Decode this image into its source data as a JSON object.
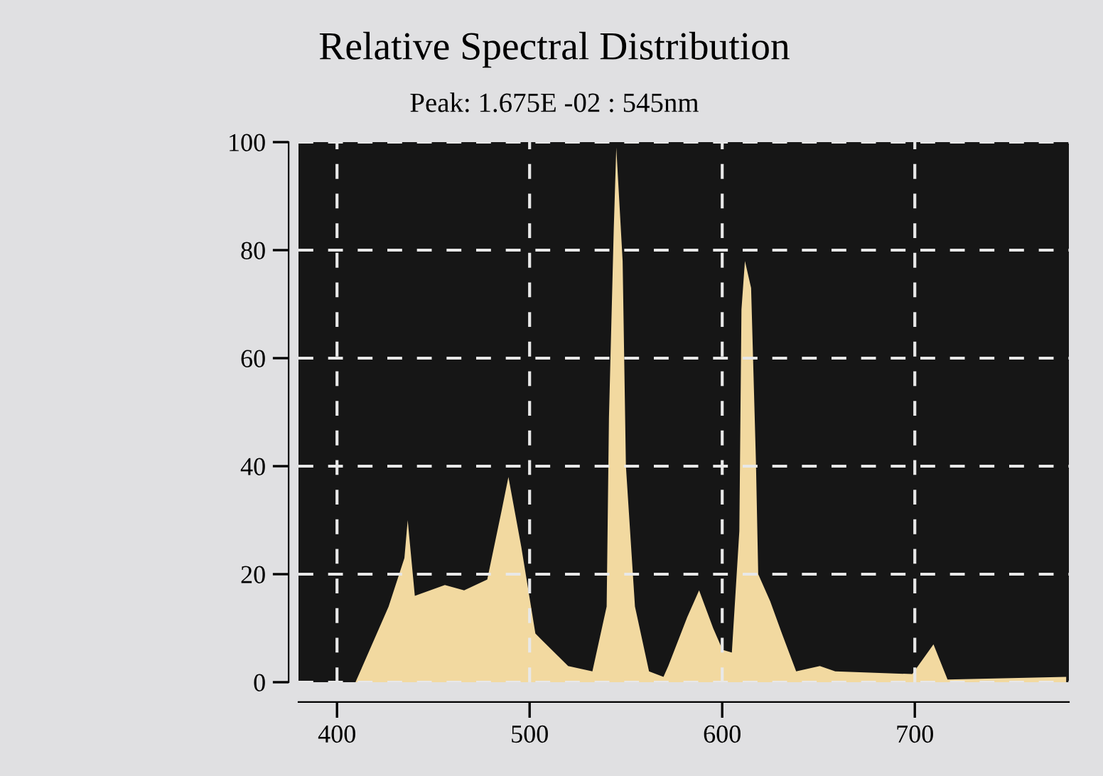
{
  "chart_data": {
    "type": "area",
    "title": "Relative Spectral Distribution",
    "subtitle": "Peak: 1.675E -02 : 545nm",
    "x": [
      380,
      409.6,
      426.8,
      435,
      436.7,
      440.4,
      456,
      466,
      478,
      485.6,
      489,
      495.7,
      503,
      520,
      532.6,
      540,
      541.2,
      543.7,
      545,
      548.3,
      550,
      554.7,
      562,
      569.5,
      572,
      581.8,
      588,
      595.3,
      600.2,
      605,
      608.9,
      610,
      611.8,
      615,
      617.5,
      618.7,
      624.9,
      631,
      638.4,
      650.7,
      658.7,
      698.7,
      709.7,
      717,
      778.6
    ],
    "values": [
      0,
      0,
      14,
      23,
      30,
      16,
      18,
      17,
      19,
      32,
      38,
      25,
      9,
      3,
      2,
      14,
      49,
      84,
      99,
      78,
      40,
      14,
      2,
      1,
      3,
      12,
      17,
      10,
      6,
      5.5,
      28,
      69,
      78,
      73,
      41,
      20,
      15,
      9,
      2,
      3,
      2,
      1.5,
      7,
      0.5,
      1
    ],
    "color": "#f2d9a0",
    "xlim": [
      380,
      780
    ],
    "xticks": [
      400,
      500,
      600,
      700
    ],
    "ylim": [
      0,
      100
    ],
    "yticks": [
      0,
      20,
      40,
      60,
      80,
      100
    ],
    "grid": true
  }
}
